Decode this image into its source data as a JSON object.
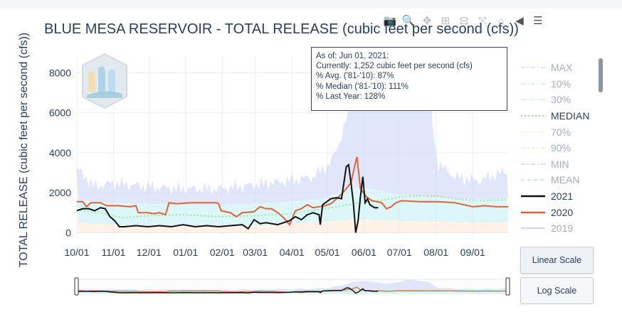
{
  "toolbar": {
    "buttons": [
      {
        "name": "camera-icon",
        "glyph": "📷"
      },
      {
        "name": "zoom-icon",
        "glyph": "🔍"
      },
      {
        "name": "pan-icon",
        "glyph": "✥"
      },
      {
        "name": "zoom-in-icon",
        "glyph": "⊞"
      },
      {
        "name": "zoom-out-icon",
        "glyph": "⊟"
      },
      {
        "name": "autoscale-icon",
        "glyph": "⤧"
      },
      {
        "name": "reset-axes-icon",
        "glyph": "⌂"
      },
      {
        "name": "spike-lines-icon",
        "glyph": "◀"
      },
      {
        "name": "compare-icon",
        "glyph": "☰"
      }
    ]
  },
  "tooltip": {
    "line1": "As of: Jun 01, 2021:",
    "line2": "Currently: 1,252 cubic feet per second (cfs)",
    "line3": "% Avg. ('81-'10): 87%",
    "line4": "% Median ('81-'10): 111%",
    "line5": "% Last Year: 128%"
  },
  "buttons": {
    "linear": "Linear Scale",
    "log": "Log Scale"
  },
  "colors": {
    "max": "#c6cdf7",
    "p10": "#b4ecf5",
    "p30": "#b9f2e4",
    "median": "#96f08a",
    "p70": "#f5f3c8",
    "p90": "#fbe2c6",
    "min": "#f4b5b5",
    "mean": "#a6e3b6",
    "y2021": "#111111",
    "y2020": "#e0623a",
    "y2019": "#b8bdf5"
  },
  "chart_data": {
    "type": "line",
    "title": "BLUE MESA RESERVOIR - TOTAL RELEASE (cubic feet per second (cfs))",
    "ylabel": "TOTAL RELEASE (cubic feet per second (cfs))",
    "xlabel": "",
    "ylim": [
      -200,
      8800
    ],
    "yticks": [
      0,
      2000,
      4000,
      6000,
      8000
    ],
    "yticklabels": [
      "0",
      "2000",
      "4000",
      "6000",
      "8000"
    ],
    "x_ticks": [
      "10/01",
      "11/01",
      "12/01",
      "01/01",
      "02/01",
      "03/01",
      "04/01",
      "05/01",
      "06/01",
      "07/01",
      "08/01",
      "09/01"
    ],
    "x_tick_days": [
      0,
      31,
      61,
      92,
      123,
      151,
      182,
      212,
      243,
      273,
      304,
      335
    ],
    "xlim": [
      0,
      365
    ],
    "grid": true,
    "legend_placement": "right",
    "legend": [
      {
        "label": "MAX",
        "key": "max",
        "style": "dashdot",
        "muted": true
      },
      {
        "label": "10%",
        "key": "p10",
        "style": "dashdot",
        "muted": true
      },
      {
        "label": "30%",
        "key": "p30",
        "style": "dashdot",
        "muted": true
      },
      {
        "label": "MEDIAN",
        "key": "median",
        "style": "dot",
        "muted": false
      },
      {
        "label": "70%",
        "key": "p70",
        "style": "dashdot",
        "muted": true
      },
      {
        "label": "90%",
        "key": "p90",
        "style": "dashdot",
        "muted": true
      },
      {
        "label": "MIN",
        "key": "min",
        "style": "dashdot",
        "muted": true
      },
      {
        "label": "MEAN",
        "key": "mean",
        "style": "dash",
        "muted": true
      },
      {
        "label": "2021",
        "key": "y2021",
        "style": "solid",
        "muted": false
      },
      {
        "label": "2020",
        "key": "y2020",
        "style": "solid",
        "muted": false
      },
      {
        "label": "2019",
        "key": "y2019",
        "style": "solid",
        "muted": true
      }
    ],
    "series": [
      {
        "name": "MAX",
        "key": "max",
        "points": [
          [
            0,
            3200
          ],
          [
            15,
            2300
          ],
          [
            30,
            2500
          ],
          [
            60,
            2300
          ],
          [
            90,
            2200
          ],
          [
            120,
            2200
          ],
          [
            150,
            2400
          ],
          [
            180,
            2600
          ],
          [
            200,
            2800
          ],
          [
            215,
            3500
          ],
          [
            225,
            5000
          ],
          [
            232,
            6500
          ],
          [
            238,
            7500
          ],
          [
            244,
            8200
          ],
          [
            250,
            7000
          ],
          [
            258,
            6500
          ],
          [
            265,
            6000
          ],
          [
            272,
            7000
          ],
          [
            280,
            8700
          ],
          [
            290,
            8000
          ],
          [
            298,
            6800
          ],
          [
            305,
            3500
          ],
          [
            320,
            2800
          ],
          [
            340,
            2600
          ],
          [
            365,
            3100
          ]
        ]
      },
      {
        "name": "10%",
        "key": "p10",
        "points": [
          [
            0,
            1650
          ],
          [
            30,
            1500
          ],
          [
            60,
            1450
          ],
          [
            90,
            1400
          ],
          [
            120,
            1400
          ],
          [
            150,
            1450
          ],
          [
            180,
            1550
          ],
          [
            210,
            1700
          ],
          [
            230,
            2300
          ],
          [
            250,
            2200
          ],
          [
            270,
            1950
          ],
          [
            290,
            1800
          ],
          [
            320,
            1700
          ],
          [
            350,
            1650
          ],
          [
            365,
            1700
          ]
        ]
      },
      {
        "name": "90%",
        "key": "p90",
        "points": [
          [
            0,
            500
          ],
          [
            30,
            400
          ],
          [
            60,
            350
          ],
          [
            90,
            350
          ],
          [
            120,
            350
          ],
          [
            150,
            350
          ],
          [
            180,
            450
          ],
          [
            210,
            550
          ],
          [
            230,
            650
          ],
          [
            250,
            650
          ],
          [
            270,
            600
          ],
          [
            300,
            550
          ],
          [
            330,
            500
          ],
          [
            365,
            500
          ]
        ]
      },
      {
        "name": "MEDIAN",
        "key": "median",
        "points": [
          [
            0,
            1150
          ],
          [
            10,
            1050
          ],
          [
            20,
            1000
          ],
          [
            30,
            850
          ],
          [
            40,
            750
          ],
          [
            60,
            850
          ],
          [
            90,
            900
          ],
          [
            120,
            800
          ],
          [
            150,
            850
          ],
          [
            180,
            950
          ],
          [
            200,
            1100
          ],
          [
            215,
            1250
          ],
          [
            225,
            1350
          ],
          [
            240,
            1500
          ],
          [
            255,
            1600
          ],
          [
            265,
            1700
          ],
          [
            275,
            1800
          ],
          [
            290,
            1850
          ],
          [
            305,
            1850
          ],
          [
            320,
            1700
          ],
          [
            340,
            1600
          ],
          [
            365,
            1650
          ]
        ]
      },
      {
        "name": "2020",
        "key": "y2020",
        "points": [
          [
            0,
            1550
          ],
          [
            5,
            1550
          ],
          [
            8,
            1300
          ],
          [
            12,
            1500
          ],
          [
            20,
            1500
          ],
          [
            25,
            1350
          ],
          [
            30,
            1350
          ],
          [
            35,
            1350
          ],
          [
            45,
            1300
          ],
          [
            50,
            1350
          ],
          [
            52,
            1000
          ],
          [
            60,
            1000
          ],
          [
            65,
            950
          ],
          [
            70,
            1000
          ],
          [
            75,
            900
          ],
          [
            78,
            1500
          ],
          [
            85,
            1450
          ],
          [
            95,
            1500
          ],
          [
            110,
            1500
          ],
          [
            118,
            1500
          ],
          [
            120,
            1450
          ],
          [
            122,
            1100
          ],
          [
            130,
            1000
          ],
          [
            135,
            800
          ],
          [
            140,
            1000
          ],
          [
            150,
            1050
          ],
          [
            155,
            1300
          ],
          [
            160,
            1200
          ],
          [
            165,
            1200
          ],
          [
            170,
            1000
          ],
          [
            175,
            750
          ],
          [
            180,
            400
          ],
          [
            185,
            1100
          ],
          [
            190,
            1200
          ],
          [
            195,
            1400
          ],
          [
            200,
            1250
          ],
          [
            210,
            1350
          ],
          [
            215,
            1450
          ],
          [
            220,
            1700
          ],
          [
            225,
            2000
          ],
          [
            228,
            2200
          ],
          [
            232,
            2500
          ],
          [
            235,
            3300
          ],
          [
            237,
            3800
          ],
          [
            240,
            2200
          ],
          [
            245,
            1800
          ],
          [
            250,
            1600
          ],
          [
            258,
            1500
          ],
          [
            262,
            1200
          ],
          [
            266,
            1300
          ],
          [
            270,
            1500
          ],
          [
            275,
            1600
          ],
          [
            290,
            1550
          ],
          [
            305,
            1550
          ],
          [
            320,
            1500
          ],
          [
            335,
            1300
          ],
          [
            345,
            1350
          ],
          [
            355,
            1300
          ],
          [
            365,
            1300
          ]
        ]
      },
      {
        "name": "2021",
        "key": "y2021",
        "points": [
          [
            0,
            1100
          ],
          [
            5,
            1200
          ],
          [
            10,
            1200
          ],
          [
            15,
            1100
          ],
          [
            20,
            1250
          ],
          [
            24,
            1200
          ],
          [
            28,
            800
          ],
          [
            32,
            600
          ],
          [
            36,
            300
          ],
          [
            40,
            300
          ],
          [
            50,
            350
          ],
          [
            60,
            300
          ],
          [
            70,
            350
          ],
          [
            80,
            300
          ],
          [
            90,
            400
          ],
          [
            100,
            300
          ],
          [
            110,
            350
          ],
          [
            120,
            300
          ],
          [
            130,
            350
          ],
          [
            140,
            400
          ],
          [
            145,
            200
          ],
          [
            150,
            650
          ],
          [
            155,
            450
          ],
          [
            160,
            500
          ],
          [
            170,
            400
          ],
          [
            175,
            500
          ],
          [
            180,
            600
          ],
          [
            185,
            800
          ],
          [
            190,
            650
          ],
          [
            195,
            900
          ],
          [
            200,
            1000
          ],
          [
            205,
            900
          ],
          [
            206,
            400
          ],
          [
            208,
            1400
          ],
          [
            215,
            1700
          ],
          [
            220,
            1750
          ],
          [
            224,
            1700
          ],
          [
            228,
            3300
          ],
          [
            230,
            3400
          ],
          [
            232,
            2500
          ],
          [
            234,
            1500
          ],
          [
            236,
            0
          ],
          [
            238,
            600
          ],
          [
            240,
            1800
          ],
          [
            242,
            2800
          ],
          [
            244,
            1500
          ],
          [
            246,
            1700
          ],
          [
            248,
            1400
          ],
          [
            252,
            1250
          ],
          [
            255,
            1250
          ]
        ]
      }
    ]
  }
}
